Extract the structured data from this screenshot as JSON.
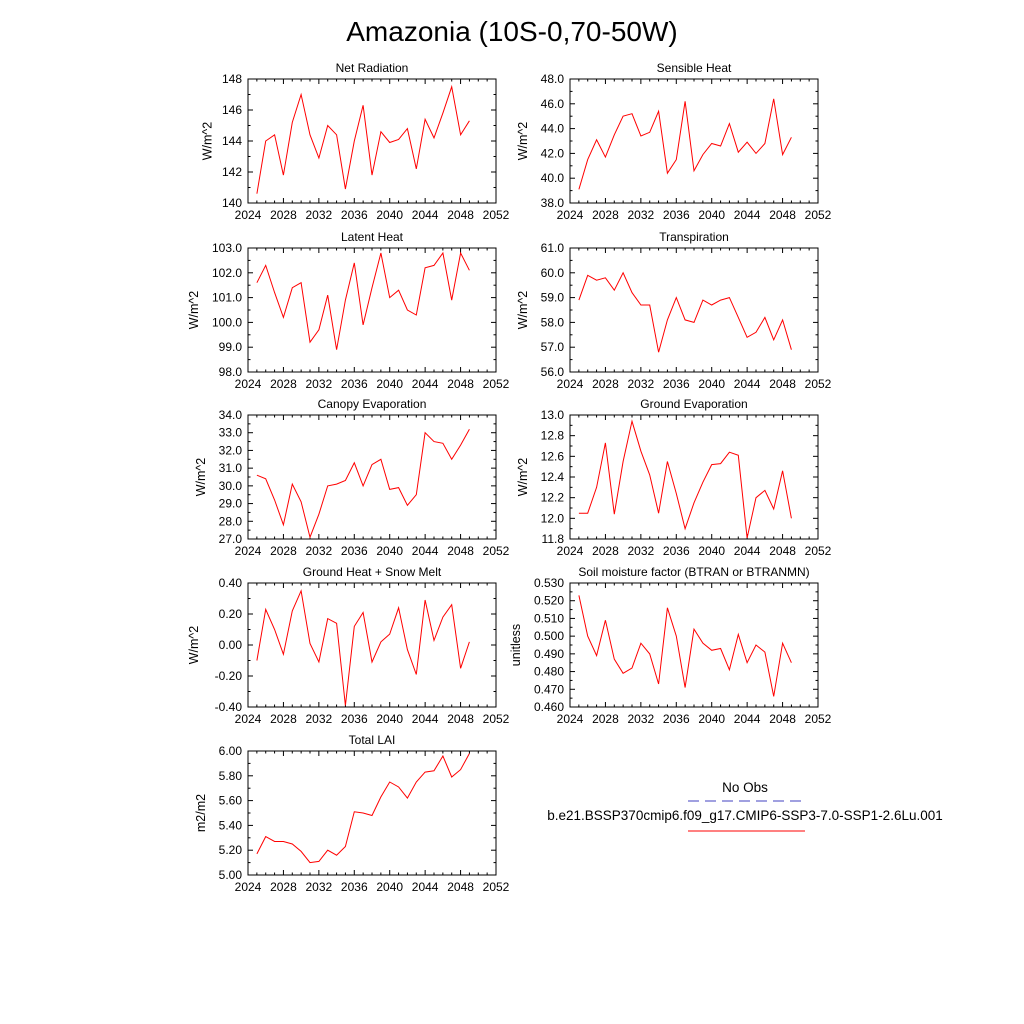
{
  "page_title": "Amazonia (10S-0,70-50W)",
  "colors": {
    "model": "#ff0000",
    "obs": "#4040c0",
    "frame": "#000000"
  },
  "legend": {
    "obs_label": "No Obs",
    "model_label": "b.e21.BSSP370cmip6.f09_g17.CMIP6-SSP3-7.0-SSP1-2.6Lu.001"
  },
  "chart_data": [
    {
      "type": "line",
      "title": "Net Radiation",
      "ylabel": "W/m^2",
      "xlim": [
        2024,
        2052
      ],
      "ylim": [
        140,
        148
      ],
      "xticks": [
        2024,
        2028,
        2032,
        2036,
        2040,
        2044,
        2048,
        2052
      ],
      "yticks": [
        "140",
        "142",
        "144",
        "146",
        "148"
      ],
      "x": [
        2025,
        2026,
        2027,
        2028,
        2029,
        2030,
        2031,
        2032,
        2033,
        2034,
        2035,
        2036,
        2037,
        2038,
        2039,
        2040,
        2041,
        2042,
        2043,
        2044,
        2045,
        2046,
        2047,
        2048,
        2049
      ],
      "series": [
        {
          "values": [
            140.6,
            144.0,
            144.4,
            141.8,
            145.2,
            147.0,
            144.4,
            142.9,
            145.0,
            144.4,
            140.9,
            144.0,
            146.3,
            141.8,
            144.6,
            143.9,
            144.1,
            144.8,
            142.2,
            145.4,
            144.2,
            145.8,
            147.5,
            144.4,
            145.3
          ]
        }
      ]
    },
    {
      "type": "line",
      "title": "Sensible Heat",
      "ylabel": "W/m^2",
      "xlim": [
        2024,
        2052
      ],
      "ylim": [
        38.0,
        48.0
      ],
      "xticks": [
        2024,
        2028,
        2032,
        2036,
        2040,
        2044,
        2048,
        2052
      ],
      "yticks": [
        "38.0",
        "40.0",
        "42.0",
        "44.0",
        "46.0",
        "48.0"
      ],
      "x": [
        2025,
        2026,
        2027,
        2028,
        2029,
        2030,
        2031,
        2032,
        2033,
        2034,
        2035,
        2036,
        2037,
        2038,
        2039,
        2040,
        2041,
        2042,
        2043,
        2044,
        2045,
        2046,
        2047,
        2048,
        2049
      ],
      "series": [
        {
          "values": [
            39.1,
            41.5,
            43.1,
            41.7,
            43.5,
            45.0,
            45.2,
            43.4,
            43.7,
            45.4,
            40.4,
            41.5,
            46.2,
            40.6,
            41.9,
            42.8,
            42.6,
            44.4,
            42.1,
            42.9,
            42.0,
            42.8,
            46.4,
            41.9,
            43.3
          ]
        }
      ]
    },
    {
      "type": "line",
      "title": "Latent Heat",
      "ylabel": "W/m^2",
      "xlim": [
        2024,
        2052
      ],
      "ylim": [
        98.0,
        103.0
      ],
      "xticks": [
        2024,
        2028,
        2032,
        2036,
        2040,
        2044,
        2048,
        2052
      ],
      "yticks": [
        "98.0",
        "99.0",
        "100.0",
        "101.0",
        "102.0",
        "103.0"
      ],
      "x": [
        2025,
        2026,
        2027,
        2028,
        2029,
        2030,
        2031,
        2032,
        2033,
        2034,
        2035,
        2036,
        2037,
        2038,
        2039,
        2040,
        2041,
        2042,
        2043,
        2044,
        2045,
        2046,
        2047,
        2048,
        2049
      ],
      "series": [
        {
          "values": [
            101.6,
            102.3,
            101.2,
            100.2,
            101.4,
            101.6,
            99.2,
            99.7,
            101.1,
            98.9,
            100.9,
            102.4,
            99.9,
            101.4,
            102.8,
            101.0,
            101.3,
            100.5,
            100.3,
            102.2,
            102.3,
            102.8,
            100.9,
            102.8,
            102.1
          ]
        }
      ]
    },
    {
      "type": "line",
      "title": "Transpiration",
      "ylabel": "W/m^2",
      "xlim": [
        2024,
        2052
      ],
      "ylim": [
        56.0,
        61.0
      ],
      "xticks": [
        2024,
        2028,
        2032,
        2036,
        2040,
        2044,
        2048,
        2052
      ],
      "yticks": [
        "56.0",
        "57.0",
        "58.0",
        "59.0",
        "60.0",
        "61.0"
      ],
      "x": [
        2025,
        2026,
        2027,
        2028,
        2029,
        2030,
        2031,
        2032,
        2033,
        2034,
        2035,
        2036,
        2037,
        2038,
        2039,
        2040,
        2041,
        2042,
        2043,
        2044,
        2045,
        2046,
        2047,
        2048,
        2049
      ],
      "series": [
        {
          "values": [
            58.9,
            59.9,
            59.7,
            59.8,
            59.3,
            60.0,
            59.2,
            58.7,
            58.7,
            56.8,
            58.1,
            59.0,
            58.1,
            58.0,
            58.9,
            58.7,
            58.9,
            59.0,
            58.2,
            57.4,
            57.6,
            58.2,
            57.3,
            58.1,
            56.9
          ]
        }
      ]
    },
    {
      "type": "line",
      "title": "Canopy Evaporation",
      "ylabel": "W/m^2",
      "xlim": [
        2024,
        2052
      ],
      "ylim": [
        27.0,
        34.0
      ],
      "xticks": [
        2024,
        2028,
        2032,
        2036,
        2040,
        2044,
        2048,
        2052
      ],
      "yticks": [
        "27.0",
        "28.0",
        "29.0",
        "30.0",
        "31.0",
        "32.0",
        "33.0",
        "34.0"
      ],
      "x": [
        2025,
        2026,
        2027,
        2028,
        2029,
        2030,
        2031,
        2032,
        2033,
        2034,
        2035,
        2036,
        2037,
        2038,
        2039,
        2040,
        2041,
        2042,
        2043,
        2044,
        2045,
        2046,
        2047,
        2048,
        2049
      ],
      "series": [
        {
          "values": [
            30.6,
            30.4,
            29.2,
            27.8,
            30.1,
            29.1,
            27.1,
            28.4,
            30.0,
            30.1,
            30.3,
            31.3,
            30.0,
            31.2,
            31.5,
            29.8,
            29.9,
            28.9,
            29.5,
            33.0,
            32.5,
            32.4,
            31.5,
            32.3,
            33.2
          ]
        }
      ]
    },
    {
      "type": "line",
      "title": "Ground Evaporation",
      "ylabel": "W/m^2",
      "xlim": [
        2024,
        2052
      ],
      "ylim": [
        11.8,
        13.0
      ],
      "xticks": [
        2024,
        2028,
        2032,
        2036,
        2040,
        2044,
        2048,
        2052
      ],
      "yticks": [
        "11.8",
        "12.0",
        "12.2",
        "12.4",
        "12.6",
        "12.8",
        "13.0"
      ],
      "x": [
        2025,
        2026,
        2027,
        2028,
        2029,
        2030,
        2031,
        2032,
        2033,
        2034,
        2035,
        2036,
        2037,
        2038,
        2039,
        2040,
        2041,
        2042,
        2043,
        2044,
        2045,
        2046,
        2047,
        2048,
        2049
      ],
      "series": [
        {
          "values": [
            12.05,
            12.05,
            12.3,
            12.73,
            12.04,
            12.55,
            12.94,
            12.65,
            12.42,
            12.05,
            12.55,
            12.24,
            11.9,
            12.15,
            12.35,
            12.52,
            12.53,
            12.64,
            12.61,
            11.81,
            12.2,
            12.27,
            12.09,
            12.46,
            12.0
          ]
        }
      ]
    },
    {
      "type": "line",
      "title": "Ground Heat + Snow Melt",
      "ylabel": "W/m^2",
      "xlim": [
        2024,
        2052
      ],
      "ylim": [
        -0.4,
        0.4
      ],
      "xticks": [
        2024,
        2028,
        2032,
        2036,
        2040,
        2044,
        2048,
        2052
      ],
      "yticks": [
        "-0.40",
        "-0.20",
        "0.00",
        "0.20",
        "0.40"
      ],
      "x": [
        2025,
        2026,
        2027,
        2028,
        2029,
        2030,
        2031,
        2032,
        2033,
        2034,
        2035,
        2036,
        2037,
        2038,
        2039,
        2040,
        2041,
        2042,
        2043,
        2044,
        2045,
        2046,
        2047,
        2048,
        2049
      ],
      "series": [
        {
          "values": [
            -0.1,
            0.23,
            0.1,
            -0.06,
            0.22,
            0.35,
            0.01,
            -0.11,
            0.17,
            0.14,
            -0.39,
            0.12,
            0.21,
            -0.11,
            0.02,
            0.07,
            0.24,
            -0.03,
            -0.19,
            0.29,
            0.03,
            0.18,
            0.26,
            -0.15,
            0.02
          ]
        }
      ]
    },
    {
      "type": "line",
      "title": "Soil moisture factor (BTRAN or BTRANMN)",
      "ylabel": "unitless",
      "xlim": [
        2024,
        2052
      ],
      "ylim": [
        0.46,
        0.53
      ],
      "xticks": [
        2024,
        2028,
        2032,
        2036,
        2040,
        2044,
        2048,
        2052
      ],
      "yticks": [
        "0.460",
        "0.470",
        "0.480",
        "0.490",
        "0.500",
        "0.510",
        "0.520",
        "0.530"
      ],
      "x": [
        2025,
        2026,
        2027,
        2028,
        2029,
        2030,
        2031,
        2032,
        2033,
        2034,
        2035,
        2036,
        2037,
        2038,
        2039,
        2040,
        2041,
        2042,
        2043,
        2044,
        2045,
        2046,
        2047,
        2048,
        2049
      ],
      "series": [
        {
          "values": [
            0.523,
            0.5,
            0.489,
            0.509,
            0.487,
            0.479,
            0.482,
            0.496,
            0.49,
            0.473,
            0.516,
            0.5,
            0.471,
            0.504,
            0.496,
            0.492,
            0.493,
            0.481,
            0.501,
            0.485,
            0.495,
            0.491,
            0.466,
            0.496,
            0.485
          ]
        }
      ]
    },
    {
      "type": "line",
      "title": "Total LAI",
      "ylabel": "m2/m2",
      "xlim": [
        2024,
        2052
      ],
      "ylim": [
        5.0,
        6.0
      ],
      "xticks": [
        2024,
        2028,
        2032,
        2036,
        2040,
        2044,
        2048,
        2052
      ],
      "yticks": [
        "5.00",
        "5.20",
        "5.40",
        "5.60",
        "5.80",
        "6.00"
      ],
      "x": [
        2025,
        2026,
        2027,
        2028,
        2029,
        2030,
        2031,
        2032,
        2033,
        2034,
        2035,
        2036,
        2037,
        2038,
        2039,
        2040,
        2041,
        2042,
        2043,
        2044,
        2045,
        2046,
        2047,
        2048,
        2049
      ],
      "series": [
        {
          "values": [
            5.17,
            5.31,
            5.27,
            5.27,
            5.25,
            5.19,
            5.1,
            5.11,
            5.2,
            5.16,
            5.23,
            5.51,
            5.5,
            5.48,
            5.63,
            5.75,
            5.71,
            5.62,
            5.75,
            5.83,
            5.84,
            5.96,
            5.79,
            5.85,
            5.98
          ]
        }
      ]
    }
  ]
}
